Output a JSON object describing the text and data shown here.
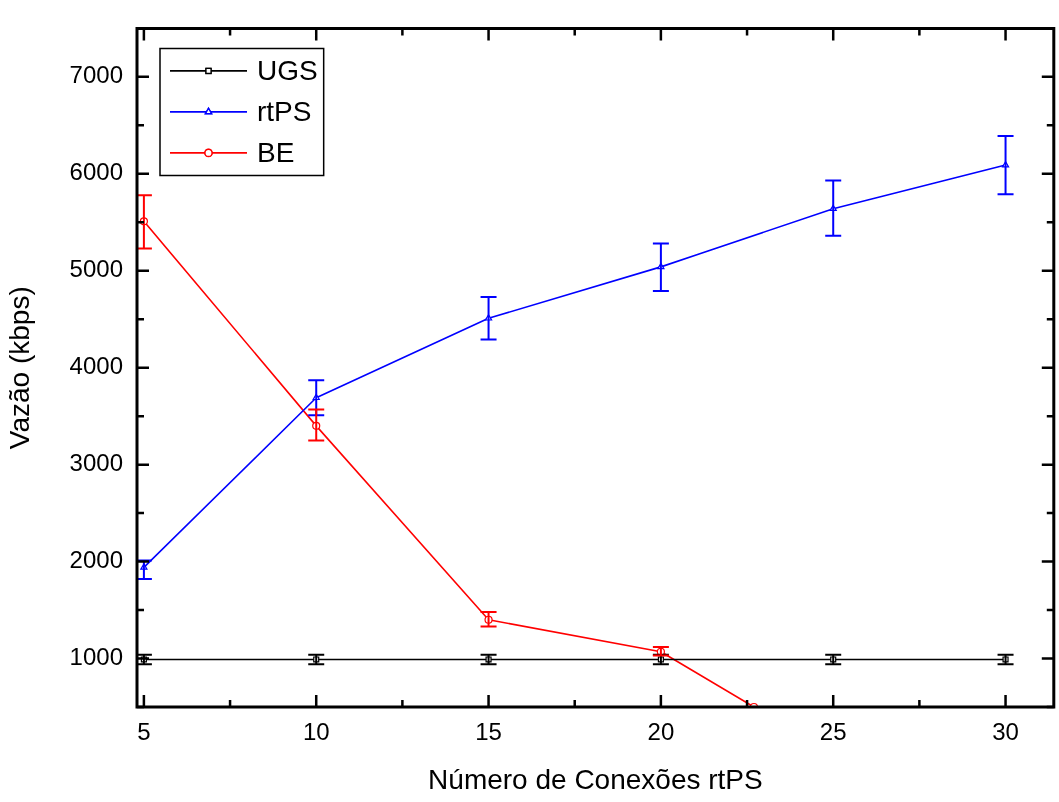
{
  "chart_data": {
    "type": "line",
    "xlabel": "Número de Conexões rtPS",
    "ylabel": "Vazão (kbps)",
    "xlim": [
      4.8,
      31.4
    ],
    "xticks": [
      5,
      {
        "value": 7.5,
        "label": null
      },
      10,
      {
        "value": 12.5,
        "label": null
      },
      15,
      {
        "value": 17.5,
        "label": null
      },
      20,
      {
        "value": 22.5,
        "label": null
      },
      25,
      {
        "value": 27.5,
        "label": null
      },
      30
    ],
    "ylim": [
      500,
      7500
    ],
    "yticks": [
      {
        "value": 500,
        "label": null
      },
      1000,
      {
        "value": 1500,
        "label": null
      },
      2000,
      {
        "value": 2500,
        "label": null
      },
      3000,
      {
        "value": 3500,
        "label": null
      },
      4000,
      {
        "value": 4500,
        "label": null
      },
      5000,
      {
        "value": 5500,
        "label": null
      },
      6000,
      {
        "value": 6500,
        "label": null
      },
      7000
    ],
    "grid": false,
    "legend": "top left",
    "line_style": "solid",
    "series": [
      {
        "name": "UGS",
        "color": "#000000",
        "marker": "square",
        "x": [
          5,
          10,
          15,
          20,
          25,
          30
        ],
        "values": [
          990,
          990,
          990,
          990,
          990,
          990
        ],
        "errors": [
          [
            940,
            1040
          ],
          [
            940,
            1040
          ],
          [
            940,
            1040
          ],
          [
            940,
            1040
          ],
          [
            940,
            1040
          ],
          [
            940,
            1040
          ]
        ]
      },
      {
        "name": "rtPS",
        "color": "#0000ff",
        "marker": "triangle",
        "x": [
          5,
          10,
          15,
          20,
          25,
          30
        ],
        "values": [
          1940,
          3690,
          4510,
          5040,
          5640,
          6090
        ],
        "errors": [
          [
            1820,
            2010
          ],
          [
            3510,
            3870
          ],
          [
            4290,
            4730
          ],
          [
            4790,
            5280
          ],
          [
            5360,
            5930
          ],
          [
            5790,
            6390
          ]
        ]
      },
      {
        "name": "BE",
        "color": "#ff0000",
        "marker": "circle",
        "x": [
          5,
          10,
          15,
          20,
          22.7
        ],
        "values": [
          5510,
          3400,
          1400,
          1070,
          500
        ],
        "errors": [
          [
            5230,
            5780
          ],
          [
            3250,
            3570
          ],
          [
            1330,
            1480
          ],
          [
            1030,
            1120
          ],
          null
        ]
      }
    ]
  }
}
